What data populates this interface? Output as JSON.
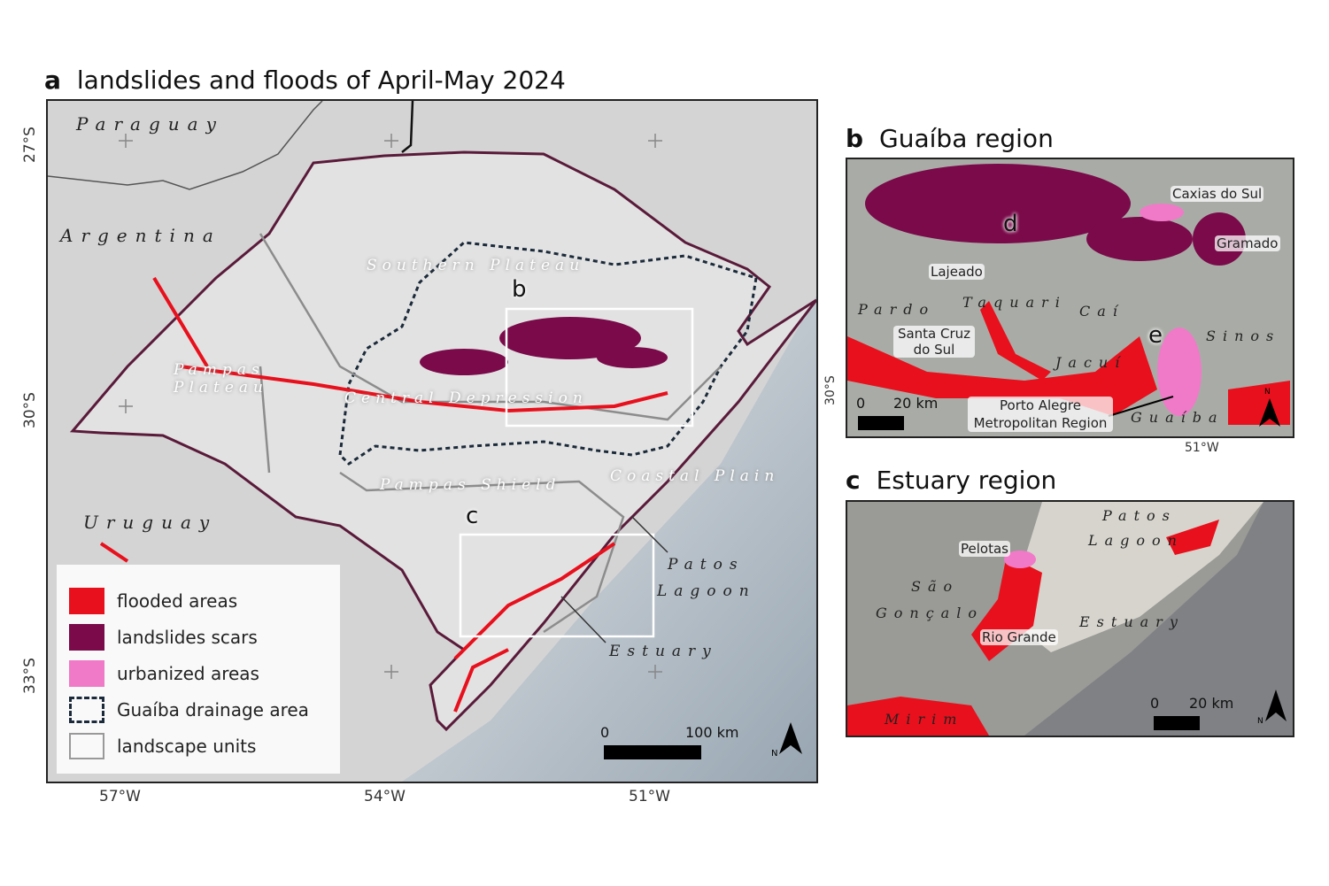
{
  "panel_a": {
    "letter": "a",
    "title": "landslides and floods of April-May 2024",
    "lat_ticks": [
      "27°S",
      "30°S",
      "33°S"
    ],
    "lon_ticks": [
      "57°W",
      "54°W",
      "51°W"
    ],
    "countries": [
      "Paraguay",
      "Argentina",
      "Uruguay"
    ],
    "units": [
      "Southern Plateau",
      "Pampas Plateau",
      "Central Depression",
      "Pampas Shield",
      "Coastal Plain"
    ],
    "water": [
      "Patos",
      "Lagoon",
      "Estuary"
    ],
    "inset_letters": [
      "b",
      "c"
    ],
    "legend": [
      {
        "label": "flooded areas",
        "color": "#e8101c"
      },
      {
        "label": "landslides scars",
        "color": "#7a0a4a"
      },
      {
        "label": "urbanized areas",
        "color": "#f07ac8"
      },
      {
        "label": "Guaíba drainage area",
        "color": "#1b2a3a"
      },
      {
        "label": "landscape units",
        "color": "#999999"
      }
    ],
    "scale": {
      "zero": "0",
      "max": "100 km"
    },
    "north": "N"
  },
  "panel_b": {
    "letter": "b",
    "title": "Guaíba region",
    "lat_tick": "30°S",
    "lon_tick": "51°W",
    "cities": [
      "Caxias do Sul",
      "Gramado",
      "Lajeado",
      "Santa Cruz do Sul",
      "Porto Alegre Metropolitan Region"
    ],
    "rivers": [
      "Pardo",
      "Taquari",
      "Caí",
      "Sinos",
      "Jacuí",
      "Guaíba"
    ],
    "sub_letters": [
      "d",
      "e"
    ],
    "scale": {
      "zero": "0",
      "max": "20 km"
    },
    "north": "N"
  },
  "panel_c": {
    "letter": "c",
    "title": "Estuary region",
    "cities": [
      "Pelotas",
      "Rio Grande"
    ],
    "water": [
      "Patos",
      "Lagoon",
      "São",
      "Gonçalo",
      "Estuary",
      "Mirim"
    ],
    "scale": {
      "zero": "0",
      "max": "20 km"
    },
    "north": "N"
  }
}
